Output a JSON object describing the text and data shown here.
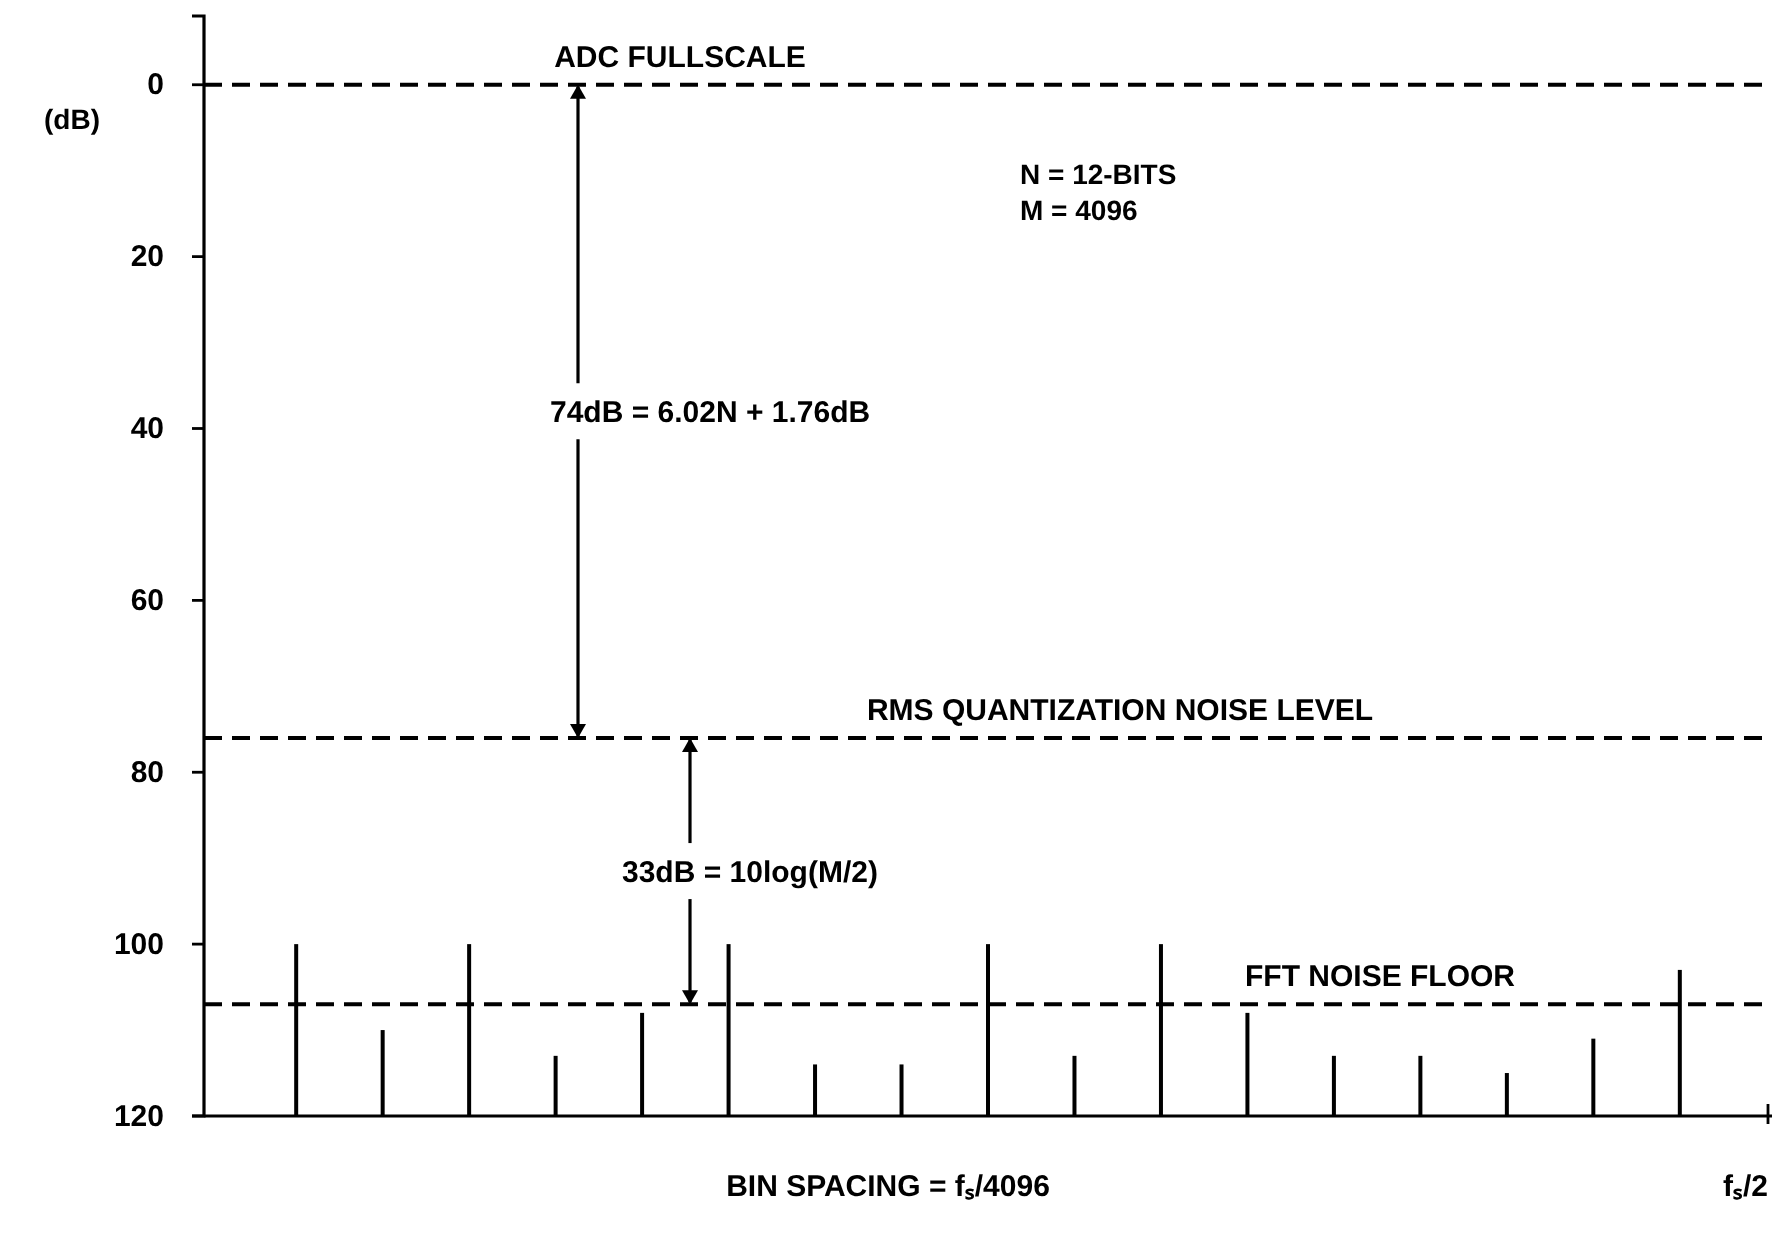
{
  "chart_data": {
    "type": "bar",
    "ylabel": "(dB)",
    "categories": [
      null,
      null,
      null,
      null,
      null,
      null,
      null,
      null,
      null,
      null,
      null,
      null,
      null,
      null,
      null,
      null,
      null
    ],
    "base": [
      120,
      120,
      120,
      120,
      120,
      120,
      120,
      120,
      120,
      120,
      120,
      120,
      120,
      120,
      120,
      120,
      120
    ],
    "values": [
      -20,
      -10,
      -20,
      -7,
      -12,
      -20,
      -6,
      -6,
      -20,
      -7,
      -20,
      -12,
      -7,
      -7,
      -5,
      -9,
      -17
    ],
    "color": "#000000",
    "ylim": [
      120,
      -8
    ],
    "yticks": [
      0,
      20,
      40,
      60,
      80,
      100,
      120
    ],
    "grid": false,
    "ref_lines": [
      {
        "axis": "y",
        "value": 0,
        "label": "ADC FULLSCALE",
        "line_style": "dashed"
      },
      {
        "axis": "y",
        "value": 76,
        "label": "RMS QUANTIZATION NOISE LEVEL",
        "line_style": "dashed"
      },
      {
        "axis": "y",
        "value": 107,
        "label": "FFT NOISE FLOOR",
        "line_style": "dashed"
      }
    ],
    "annotations": [
      "N = 12-BITS",
      "M = 4096",
      "74dB = 6.02N + 1.76dB",
      "33dB = 10log(M/2)",
      "BIN SPACING = fₛ/4096",
      "fₛ/2"
    ]
  }
}
